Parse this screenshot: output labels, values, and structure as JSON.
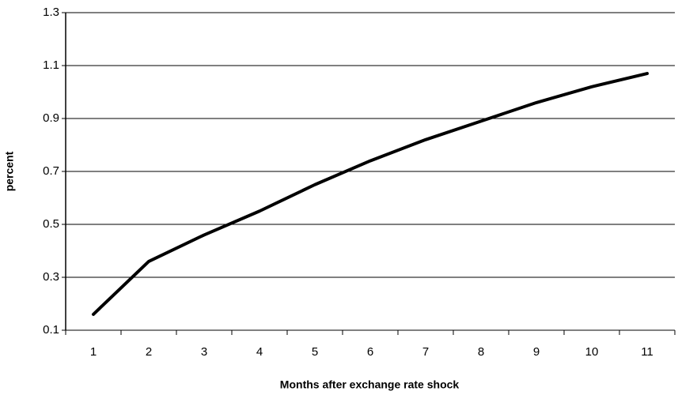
{
  "chart_data": {
    "type": "line",
    "categories": [
      "1",
      "2",
      "3",
      "4",
      "5",
      "6",
      "7",
      "8",
      "9",
      "10",
      "11"
    ],
    "series": [
      {
        "name": null,
        "color": "#000000",
        "values": [
          0.16,
          0.36,
          0.46,
          0.55,
          0.65,
          0.74,
          0.82,
          0.89,
          0.96,
          1.02,
          1.07
        ]
      }
    ],
    "x_label": "Months after exchange rate shock",
    "y_label": "percent",
    "ylim": [
      0.1,
      1.3
    ],
    "yticks": [
      0.1,
      0.3,
      0.5,
      0.7,
      0.9,
      1.1,
      1.3
    ],
    "grid": true
  }
}
